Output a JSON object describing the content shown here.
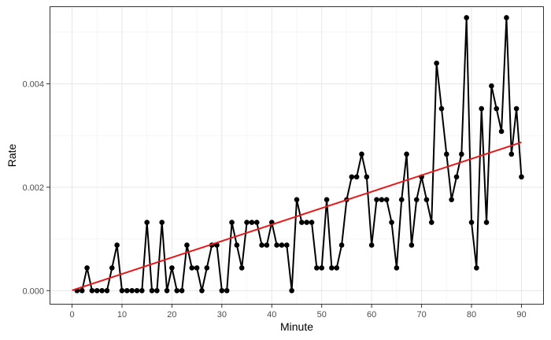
{
  "chart_data": {
    "type": "line",
    "title": "",
    "xlabel": "Minute",
    "ylabel": "Rate",
    "xlim": [
      -4.5,
      94.5
    ],
    "ylim": [
      -0.00027,
      0.0055
    ],
    "x_ticks": [
      0,
      10,
      20,
      30,
      40,
      50,
      60,
      70,
      80,
      90
    ],
    "x_tick_labels": [
      "0",
      "10",
      "20",
      "30",
      "40",
      "50",
      "60",
      "70",
      "80",
      "90"
    ],
    "y_ticks": [
      0,
      0.002,
      0.004
    ],
    "y_tick_labels": [
      "0.000",
      "0.002",
      "0.004"
    ],
    "grid": true,
    "legend": "none",
    "series": [
      {
        "color": "#000000",
        "marker": "circle",
        "x": [
          1,
          2,
          3,
          4,
          5,
          6,
          7,
          8,
          9,
          10,
          11,
          12,
          13,
          14,
          15,
          16,
          17,
          18,
          19,
          20,
          21,
          22,
          23,
          24,
          25,
          26,
          27,
          28,
          29,
          30,
          31,
          32,
          33,
          34,
          35,
          36,
          37,
          38,
          39,
          40,
          41,
          42,
          43,
          44,
          45,
          46,
          47,
          48,
          49,
          50,
          51,
          52,
          53,
          54,
          55,
          56,
          57,
          58,
          59,
          60,
          61,
          62,
          63,
          64,
          65,
          66,
          67,
          68,
          69,
          70,
          71,
          72,
          73,
          74,
          75,
          76,
          77,
          78,
          79,
          80,
          81,
          82,
          83,
          84,
          85,
          86,
          87,
          88,
          89,
          90
        ],
        "y": [
          0,
          0,
          0.00044,
          0,
          0,
          0,
          0,
          0.00044,
          0.00088,
          0,
          0,
          0,
          0,
          0,
          0.00132,
          0,
          0,
          0.00132,
          0,
          0.00044,
          0,
          0,
          0.00088,
          0.00044,
          0.00044,
          0,
          0.00044,
          0.00088,
          0.00088,
          0,
          0,
          0.00132,
          0.00088,
          0.00044,
          0.00132,
          0.00132,
          0.00132,
          0.00088,
          0.00088,
          0.00132,
          0.00088,
          0.00088,
          0.00088,
          0,
          0.00176,
          0.00132,
          0.00132,
          0.00132,
          0.00044,
          0.00044,
          0.00176,
          0.00044,
          0.00044,
          0.00088,
          0.00176,
          0.0022,
          0.0022,
          0.00264,
          0.0022,
          0.00088,
          0.00176,
          0.00176,
          0.00176,
          0.00132,
          0.00044,
          0.00176,
          0.00264,
          0.00088,
          0.00176,
          0.0022,
          0.00176,
          0.00132,
          0.0044,
          0.00352,
          0.00264,
          0.00176,
          0.0022,
          0.00264,
          0.00528,
          0.00132,
          0.00044,
          0.00352,
          0.00132,
          0.00396,
          0.00352,
          0.00308,
          0.00528,
          0.00264,
          0.00352,
          0.0022
        ]
      }
    ],
    "trend_line": {
      "color": "#e41a1c",
      "x": [
        0,
        90
      ],
      "y": [
        4.5e-06,
        0.0028685
      ]
    }
  }
}
